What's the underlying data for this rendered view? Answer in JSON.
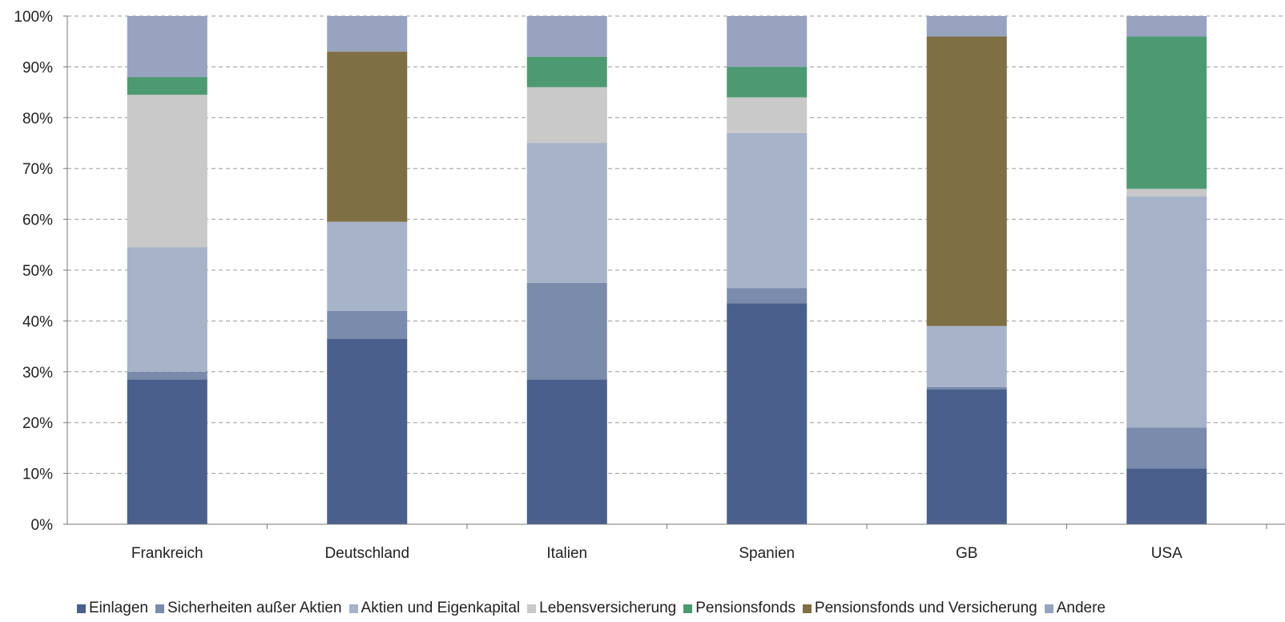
{
  "chart_data": {
    "type": "bar",
    "stacked": true,
    "categories": [
      "Frankreich",
      "Deutschland",
      "Italien",
      "Spanien",
      "GB",
      "USA"
    ],
    "ylim": [
      0,
      100
    ],
    "yticks": [
      "0%",
      "10%",
      "20%",
      "30%",
      "40%",
      "50%",
      "60%",
      "70%",
      "80%",
      "90%",
      "100%"
    ],
    "grid": true,
    "legend_position": "bottom",
    "series": [
      {
        "name": "Einlagen",
        "color": "#4a5f8b",
        "values": [
          28.5,
          36.5,
          28.5,
          43.5,
          26.5,
          11
        ]
      },
      {
        "name": "Sicherheiten außer Aktien",
        "color": "#7a8bab",
        "values": [
          1.5,
          5.5,
          19,
          3,
          0.5,
          8
        ]
      },
      {
        "name": "Aktien und Eigenkapital",
        "color": "#a7b3c8",
        "values": [
          24.5,
          17.5,
          27.5,
          30.5,
          12,
          45.5
        ]
      },
      {
        "name": "Lebensversicherung",
        "color": "#c9c9c9",
        "values": [
          30,
          0,
          11,
          7,
          0,
          1.5
        ]
      },
      {
        "name": "Pensionsfonds",
        "color": "#4d9a72",
        "values": [
          3.5,
          0,
          6,
          6,
          0,
          30
        ]
      },
      {
        "name": "Pensionsfonds und Versicherung",
        "color": "#7e6f45",
        "values": [
          0,
          33.5,
          0,
          0,
          57,
          0
        ]
      },
      {
        "name": "Andere",
        "color": "#98a3bf",
        "values": [
          12,
          7,
          8,
          10,
          4,
          4
        ]
      }
    ]
  }
}
